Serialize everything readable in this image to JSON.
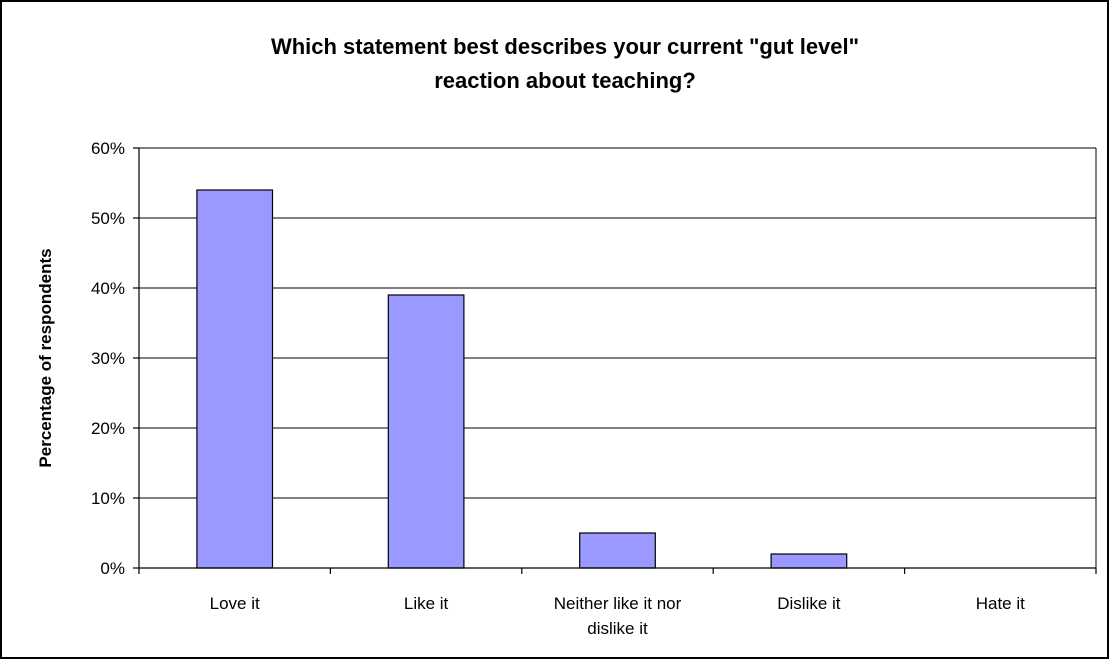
{
  "chart_data": {
    "type": "bar",
    "title_lines": [
      "Which statement best describes your current \"gut level\"",
      "reaction about teaching?"
    ],
    "ylabel": "Percentage of respondents",
    "xlabel": "",
    "categories": [
      [
        "Love it"
      ],
      [
        "Like it"
      ],
      [
        "Neither like it nor",
        "dislike it"
      ],
      [
        "Dislike it"
      ],
      [
        "Hate it"
      ]
    ],
    "values": [
      54,
      39,
      5,
      2,
      0
    ],
    "ylim": [
      0,
      60
    ],
    "yticks": [
      0,
      10,
      20,
      30,
      40,
      50,
      60
    ],
    "ytick_labels": [
      "0%",
      "10%",
      "20%",
      "30%",
      "40%",
      "50%",
      "60%"
    ],
    "grid": true,
    "legend": "none",
    "colors": {
      "bar_fill": "#9999ff",
      "bar_stroke": "#000000",
      "grid": "#000000",
      "frame": "#000000"
    }
  }
}
